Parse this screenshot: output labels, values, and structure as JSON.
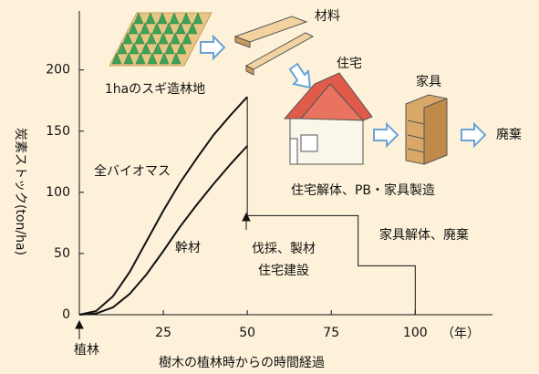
{
  "chart_data": {
    "type": "line",
    "xlabel": "樹木の植林時からの時間経過",
    "ylabel": "炭素ストック(ton/ha)",
    "xlim": [
      0,
      123
    ],
    "ylim": [
      0,
      246
    ],
    "xticks": [
      25,
      50,
      75,
      100
    ],
    "yticks": [
      0,
      50,
      100,
      150,
      200
    ],
    "series": [
      {
        "name": "全バイオマス",
        "color": "#111111",
        "x": [
          0,
          5,
          10,
          15,
          20,
          25,
          30,
          35,
          40,
          45,
          50
        ],
        "values": [
          0,
          3,
          15,
          35,
          60,
          85,
          108,
          128,
          147,
          163,
          178
        ]
      },
      {
        "name": "幹材",
        "color": "#111111",
        "x": [
          0,
          5,
          10,
          15,
          20,
          25,
          30,
          35,
          40,
          45,
          50
        ],
        "values": [
          0,
          1,
          6,
          17,
          33,
          52,
          72,
          90,
          107,
          123,
          138
        ]
      },
      {
        "color": "#111111",
        "x": [
          50,
          50,
          83,
          83,
          100,
          100
        ],
        "values": [
          178,
          81,
          81,
          40,
          40,
          0
        ]
      }
    ],
    "annotations": [
      "1haのスギ造林地",
      "材料",
      "住宅",
      "家具",
      "廃棄",
      "住宅解体、PB・家具製造",
      "家具解体、廃棄",
      "伐採、製材",
      "住宅建設",
      "植林",
      "（年）"
    ]
  }
}
